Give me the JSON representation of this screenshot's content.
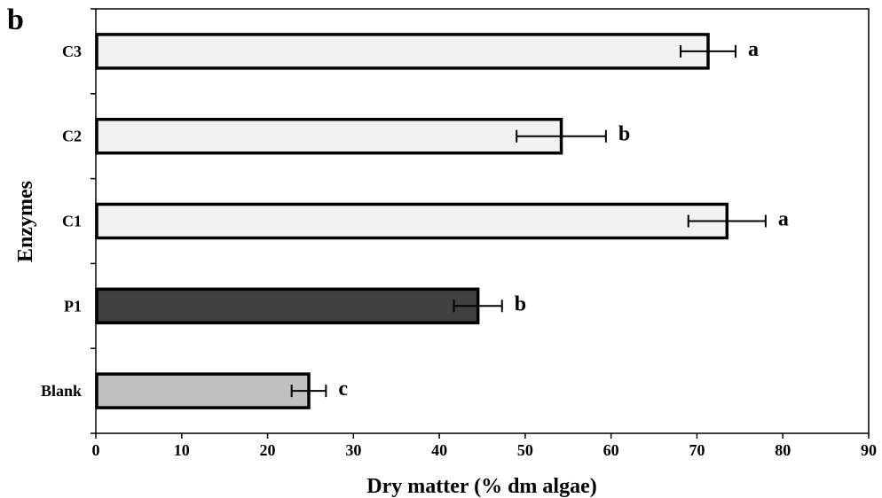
{
  "panel_label": "b",
  "chart_data": {
    "type": "bar",
    "orientation": "horizontal",
    "title": "",
    "xlabel": "Dry matter (% dm algae)",
    "ylabel": "Enzymes",
    "xlim": [
      0,
      90
    ],
    "xticks": [
      0,
      10,
      20,
      30,
      40,
      50,
      60,
      70,
      80,
      90
    ],
    "grid": false,
    "categories": [
      "Blank",
      "P1",
      "C1",
      "C2",
      "C3"
    ],
    "values": [
      24.8,
      44.5,
      73.5,
      54.2,
      71.3
    ],
    "errors": [
      2.0,
      2.8,
      4.5,
      5.2,
      3.2
    ],
    "significance": [
      "c",
      "b",
      "a",
      "b",
      "a"
    ],
    "colors": [
      "#c0c0c0",
      "#404040",
      "#f2f2f2",
      "#f2f2f2",
      "#f2f2f2"
    ]
  }
}
